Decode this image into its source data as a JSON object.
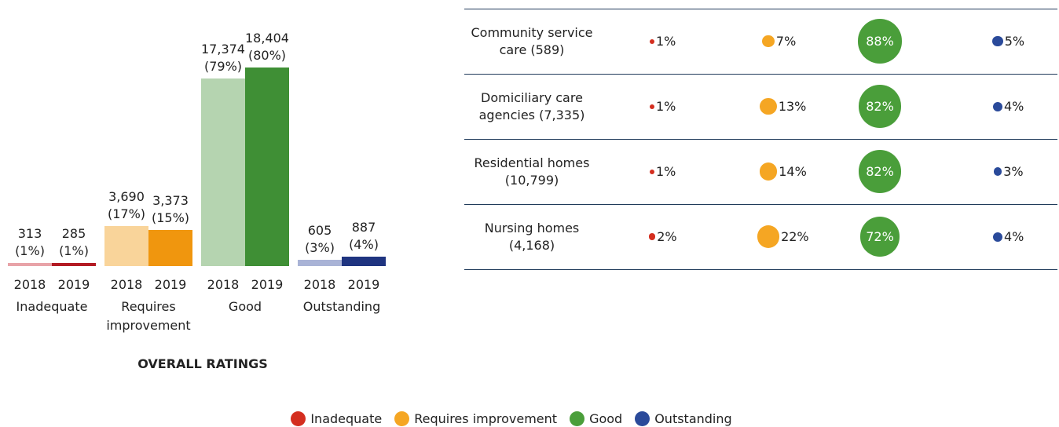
{
  "chart_data": [
    {
      "type": "bar",
      "title": "OVERALL RATINGS",
      "categories": [
        "Inadequate",
        "Requires improvement",
        "Good",
        "Outstanding"
      ],
      "ylim": [
        0,
        20000
      ],
      "series": [
        {
          "name": "2018",
          "colors": [
            "#e8a3a8",
            "#f9d49a",
            "#b5d4b0",
            "#a9b3d6"
          ],
          "values": [
            313,
            3690,
            17374,
            605
          ],
          "value_labels": [
            "313\n(1%)",
            "3,690\n(17%)",
            "17,374\n(79%)",
            "605\n(3%)"
          ]
        },
        {
          "name": "2019",
          "colors": [
            "#b31b23",
            "#f0960e",
            "#3f8f35",
            "#1f3480"
          ],
          "values": [
            285,
            3373,
            18404,
            887
          ],
          "value_labels": [
            "285\n(1%)",
            "3,373\n(15%)",
            "18,404\n(80%)",
            "887\n(4%)"
          ]
        }
      ]
    },
    {
      "type": "bubble_table",
      "categories": [
        "Community service care (589)",
        "Domiciliary care agencies (7,335)",
        "Residential homes (10,799)",
        "Nursing homes (4,168)"
      ],
      "series": [
        {
          "name": "Inadequate",
          "color": "#d42e1f",
          "values": [
            1,
            1,
            1,
            2
          ],
          "value_labels": [
            "1%",
            "1%",
            "1%",
            "2%"
          ]
        },
        {
          "name": "Requires improvement",
          "color": "#f5a623",
          "values": [
            7,
            13,
            14,
            22
          ],
          "value_labels": [
            "7%",
            "13%",
            "14%",
            "22%"
          ]
        },
        {
          "name": "Good",
          "color": "#4a9e3a",
          "values": [
            88,
            82,
            82,
            72
          ],
          "value_labels": [
            "88%",
            "82%",
            "82%",
            "72%"
          ]
        },
        {
          "name": "Outstanding",
          "color": "#2a4a9a",
          "values": [
            5,
            4,
            3,
            4
          ],
          "value_labels": [
            "5%",
            "4%",
            "3%",
            "4%"
          ]
        }
      ]
    }
  ]
}
